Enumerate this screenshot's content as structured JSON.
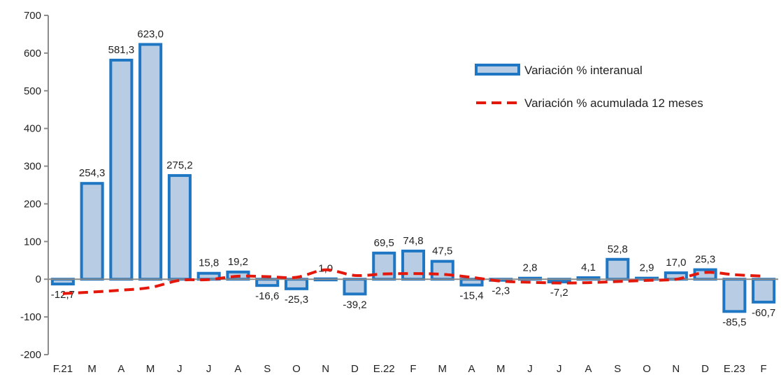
{
  "chart_data": {
    "type": "bar",
    "title": "",
    "xlabel": "",
    "ylabel": "",
    "ylim": [
      -200,
      700
    ],
    "yticks": [
      -200,
      -100,
      0,
      100,
      200,
      300,
      400,
      500,
      600,
      700
    ],
    "grid": false,
    "legend_position": "top-right",
    "categories": [
      "F.21",
      "M",
      "A",
      "M",
      "J",
      "J",
      "A",
      "S",
      "O",
      "N",
      "D",
      "E.22",
      "F",
      "M",
      "A",
      "M",
      "J",
      "J",
      "A",
      "S",
      "O",
      "N",
      "D",
      "E.23",
      "F"
    ],
    "series": [
      {
        "name": "Variación % interanual",
        "kind": "bar",
        "fill": "#b8cce4",
        "stroke": "#1f77c4",
        "values": [
          -12.7,
          254.3,
          581.3,
          623.0,
          275.2,
          15.8,
          19.2,
          -16.6,
          -25.3,
          1.0,
          -39.2,
          69.5,
          74.8,
          47.5,
          -15.4,
          -2.3,
          2.8,
          -7.2,
          4.1,
          52.8,
          2.9,
          17.0,
          25.3,
          -85.5,
          -60.7
        ],
        "labels": [
          "-12,7",
          "254,3",
          "581,3",
          "623,0",
          "275,2",
          "15,8",
          "19,2",
          "-16,6",
          "-25,3",
          "1,0",
          "-39,2",
          "69,5",
          "74,8",
          "47,5",
          "-15,4",
          "-2,3",
          "2,8",
          "-7,2",
          "4,1",
          "52,8",
          "2,9",
          "17,0",
          "25,3",
          "-85,5",
          "-60,7"
        ]
      },
      {
        "name": "Variación % acumulada 12 meses",
        "kind": "line",
        "style": "dashed",
        "color": "#e3170a",
        "values": [
          -38,
          -34,
          -29,
          -22,
          -3,
          -1,
          8,
          7,
          5,
          25,
          10,
          14,
          15,
          13,
          5,
          -5,
          -8,
          -10,
          -9,
          -6,
          -3,
          0,
          18,
          12,
          8
        ]
      }
    ]
  }
}
